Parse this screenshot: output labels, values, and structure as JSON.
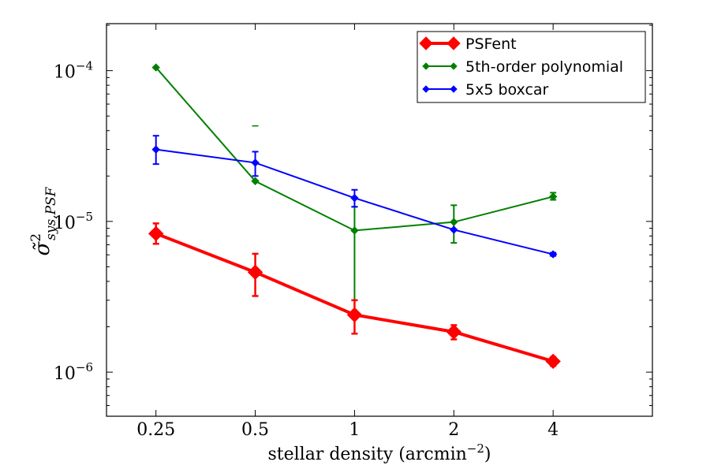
{
  "chart_data": {
    "type": "line",
    "xscale": "log2",
    "yscale": "log10",
    "x": [
      0.25,
      0.5,
      1,
      2,
      4
    ],
    "xticks": [
      "0.25",
      "0.5",
      "1",
      "2",
      "4"
    ],
    "xlim": [
      0.177,
      8.0
    ],
    "ylim": [
      5.1e-07,
      0.000205
    ],
    "ytick_values": [
      1e-06,
      1e-05,
      0.0001
    ],
    "xlabel_main": "stellar density (arcmin",
    "xlabel_exp": "−2",
    "xlabel_close": ")",
    "ylabel_base": "σ̃",
    "ylabel_sup": "2",
    "ylabel_sub": "sys,PSF",
    "ytick_base": "10",
    "ytick_exps": [
      "−6",
      "−5",
      "−4"
    ],
    "legend_position": "top-right",
    "series": [
      {
        "name": "PSFent",
        "color": "#ff0000",
        "style": "thick",
        "values": [
          8.3e-06,
          4.6e-06,
          2.4e-06,
          1.85e-06,
          1.18e-06
        ],
        "err_low": [
          7.1e-06,
          3.2e-06,
          1.8e-06,
          1.65e-06,
          1.1e-06
        ],
        "err_high": [
          9.7e-06,
          6.1e-06,
          3e-06,
          2.05e-06,
          1.26e-06
        ]
      },
      {
        "name": "5th-order polynomial",
        "color": "#008000",
        "style": "thin",
        "values": [
          0.000105,
          1.85e-05,
          8.7e-06,
          9.9e-06,
          1.46e-05
        ],
        "err_low": [
          null,
          null,
          3e-06,
          7.2e-06,
          1.39e-05
        ],
        "err_high": [
          null,
          null,
          1.25e-05,
          1.28e-05,
          1.55e-05
        ],
        "err_cap_only": [
          null,
          4.3e-05,
          null,
          null,
          null
        ]
      },
      {
        "name": "5x5 boxcar",
        "color": "#0000ff",
        "style": "thin",
        "values": [
          3e-05,
          2.45e-05,
          1.43e-05,
          8.8e-06,
          6.05e-06
        ],
        "err_low": [
          2.4e-05,
          2e-05,
          1.25e-05,
          null,
          5.9e-06
        ],
        "err_high": [
          3.7e-05,
          2.9e-05,
          1.62e-05,
          null,
          6.2e-06
        ]
      }
    ]
  }
}
